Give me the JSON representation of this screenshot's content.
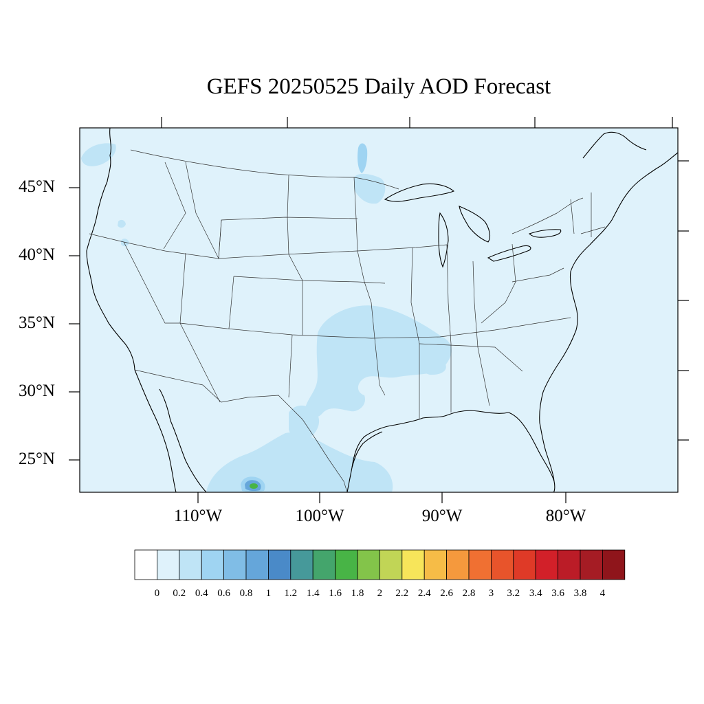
{
  "title": "GEFS 20250525 Daily AOD Forecast",
  "axes": {
    "lat_labels": [
      "45°N",
      "40°N",
      "35°N",
      "30°N",
      "25°N"
    ],
    "lon_labels": [
      "110°W",
      "100°W",
      "90°W",
      "80°W"
    ]
  },
  "colorbar": {
    "labels": [
      "0",
      "0.2",
      "0.4",
      "0.6",
      "0.8",
      "1",
      "1.2",
      "1.4",
      "1.6",
      "1.8",
      "2",
      "2.2",
      "2.4",
      "2.6",
      "2.8",
      "3",
      "3.2",
      "3.4",
      "3.6",
      "3.8",
      "4"
    ],
    "colors": [
      "#ffffff",
      "#dff2fb",
      "#bfe4f6",
      "#9fd4f2",
      "#80bde6",
      "#65a6da",
      "#4a8ac8",
      "#46999a",
      "#44a56c",
      "#48b446",
      "#83c44a",
      "#c1d556",
      "#f7e55a",
      "#f6bc47",
      "#f5993d",
      "#f07032",
      "#e8542b",
      "#df3a27",
      "#d22029",
      "#bb1c27",
      "#a51c24",
      "#8f151b"
    ]
  },
  "colors": {
    "ocean_land_base": "#dff2fb",
    "aod_04_06": "#bfe4f6",
    "aod_06_08": "#9fd4f2",
    "aod_08_10": "#80bde6",
    "aod_16_18": "#48b446"
  }
}
